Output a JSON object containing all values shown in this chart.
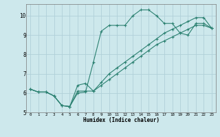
{
  "xlabel": "Humidex (Indice chaleur)",
  "background_color": "#cde8ec",
  "grid_color": "#b0d0d8",
  "line_color": "#2a8070",
  "xlim": [
    -0.5,
    23.5
  ],
  "ylim": [
    5.0,
    10.6
  ],
  "yticks": [
    5,
    6,
    7,
    8,
    9,
    10
  ],
  "xticks": [
    0,
    1,
    2,
    3,
    4,
    5,
    6,
    7,
    8,
    9,
    10,
    11,
    12,
    13,
    14,
    15,
    16,
    17,
    18,
    19,
    20,
    21,
    22,
    23
  ],
  "line1_x": [
    0,
    1,
    2,
    3,
    4,
    5,
    6,
    7,
    8,
    9,
    10,
    11,
    12,
    13,
    14,
    15,
    16,
    17,
    18,
    19,
    20,
    21,
    22,
    23
  ],
  "line1_y": [
    6.2,
    6.05,
    6.05,
    5.85,
    5.35,
    5.3,
    6.0,
    6.05,
    7.6,
    9.2,
    9.5,
    9.5,
    9.5,
    10.0,
    10.3,
    10.3,
    10.0,
    9.6,
    9.6,
    9.1,
    9.0,
    9.6,
    9.6,
    9.35
  ],
  "line2_x": [
    0,
    1,
    2,
    3,
    4,
    5,
    6,
    7,
    8,
    9,
    10,
    11,
    12,
    13,
    14,
    15,
    16,
    17,
    18,
    19,
    20,
    21,
    22,
    23
  ],
  "line2_y": [
    6.2,
    6.05,
    6.05,
    5.85,
    5.35,
    5.3,
    6.4,
    6.5,
    6.1,
    6.55,
    7.0,
    7.3,
    7.6,
    7.9,
    8.2,
    8.5,
    8.8,
    9.1,
    9.3,
    9.5,
    9.7,
    9.9,
    9.9,
    9.35
  ],
  "line3_x": [
    0,
    1,
    2,
    3,
    4,
    5,
    6,
    7,
    8,
    9,
    10,
    11,
    12,
    13,
    14,
    15,
    16,
    17,
    18,
    19,
    20,
    21,
    22,
    23
  ],
  "line3_y": [
    6.2,
    6.05,
    6.05,
    5.85,
    5.35,
    5.3,
    6.1,
    6.1,
    6.1,
    6.4,
    6.7,
    7.0,
    7.3,
    7.6,
    7.9,
    8.2,
    8.5,
    8.7,
    8.9,
    9.1,
    9.3,
    9.5,
    9.5,
    9.35
  ]
}
